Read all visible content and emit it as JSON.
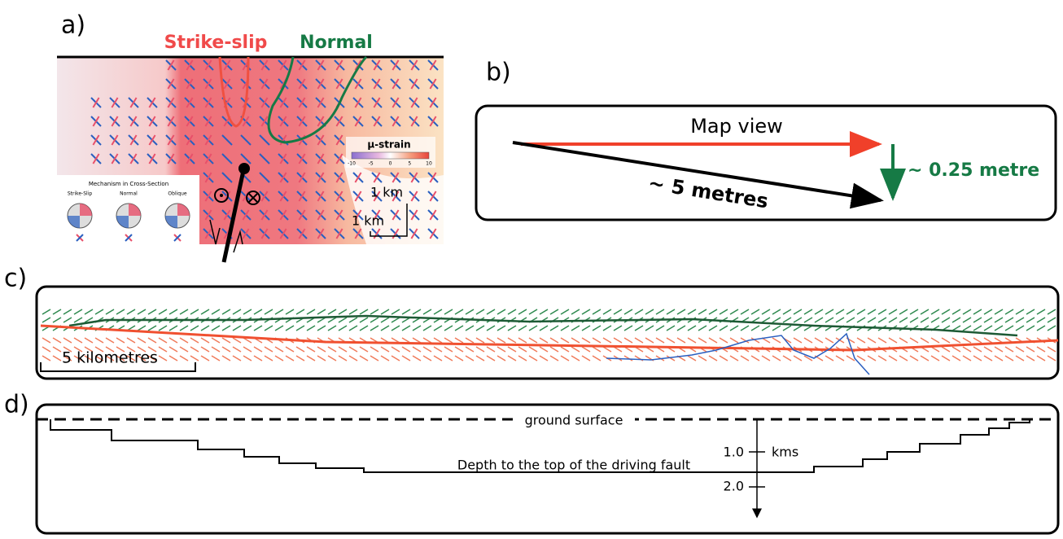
{
  "panel_a": {
    "label": "a)",
    "regions": [
      "Strike-slip",
      "Normal"
    ],
    "colorbar": {
      "title": "μ-strain",
      "ticks": [
        "-10",
        "-5",
        "0",
        "5",
        "10"
      ]
    },
    "inset": {
      "title": "Mechanism in Cross-Section",
      "types": [
        "Strike-Slip",
        "Normal",
        "Oblique"
      ]
    },
    "scale": [
      "1 km",
      "1 km"
    ]
  },
  "panel_b": {
    "label": "b)",
    "map_view": "Map view",
    "vertical": "~ 0.25 metre",
    "slip": "~ 5 metres"
  },
  "panel_c": {
    "label": "c)",
    "scale": "5 kilometres"
  },
  "panel_d": {
    "label": "d)",
    "surface": "ground surface",
    "depth_label": "Depth to the top of the driving fault",
    "tick_1": "1.0",
    "unit": "kms",
    "tick_2": "2.0"
  }
}
